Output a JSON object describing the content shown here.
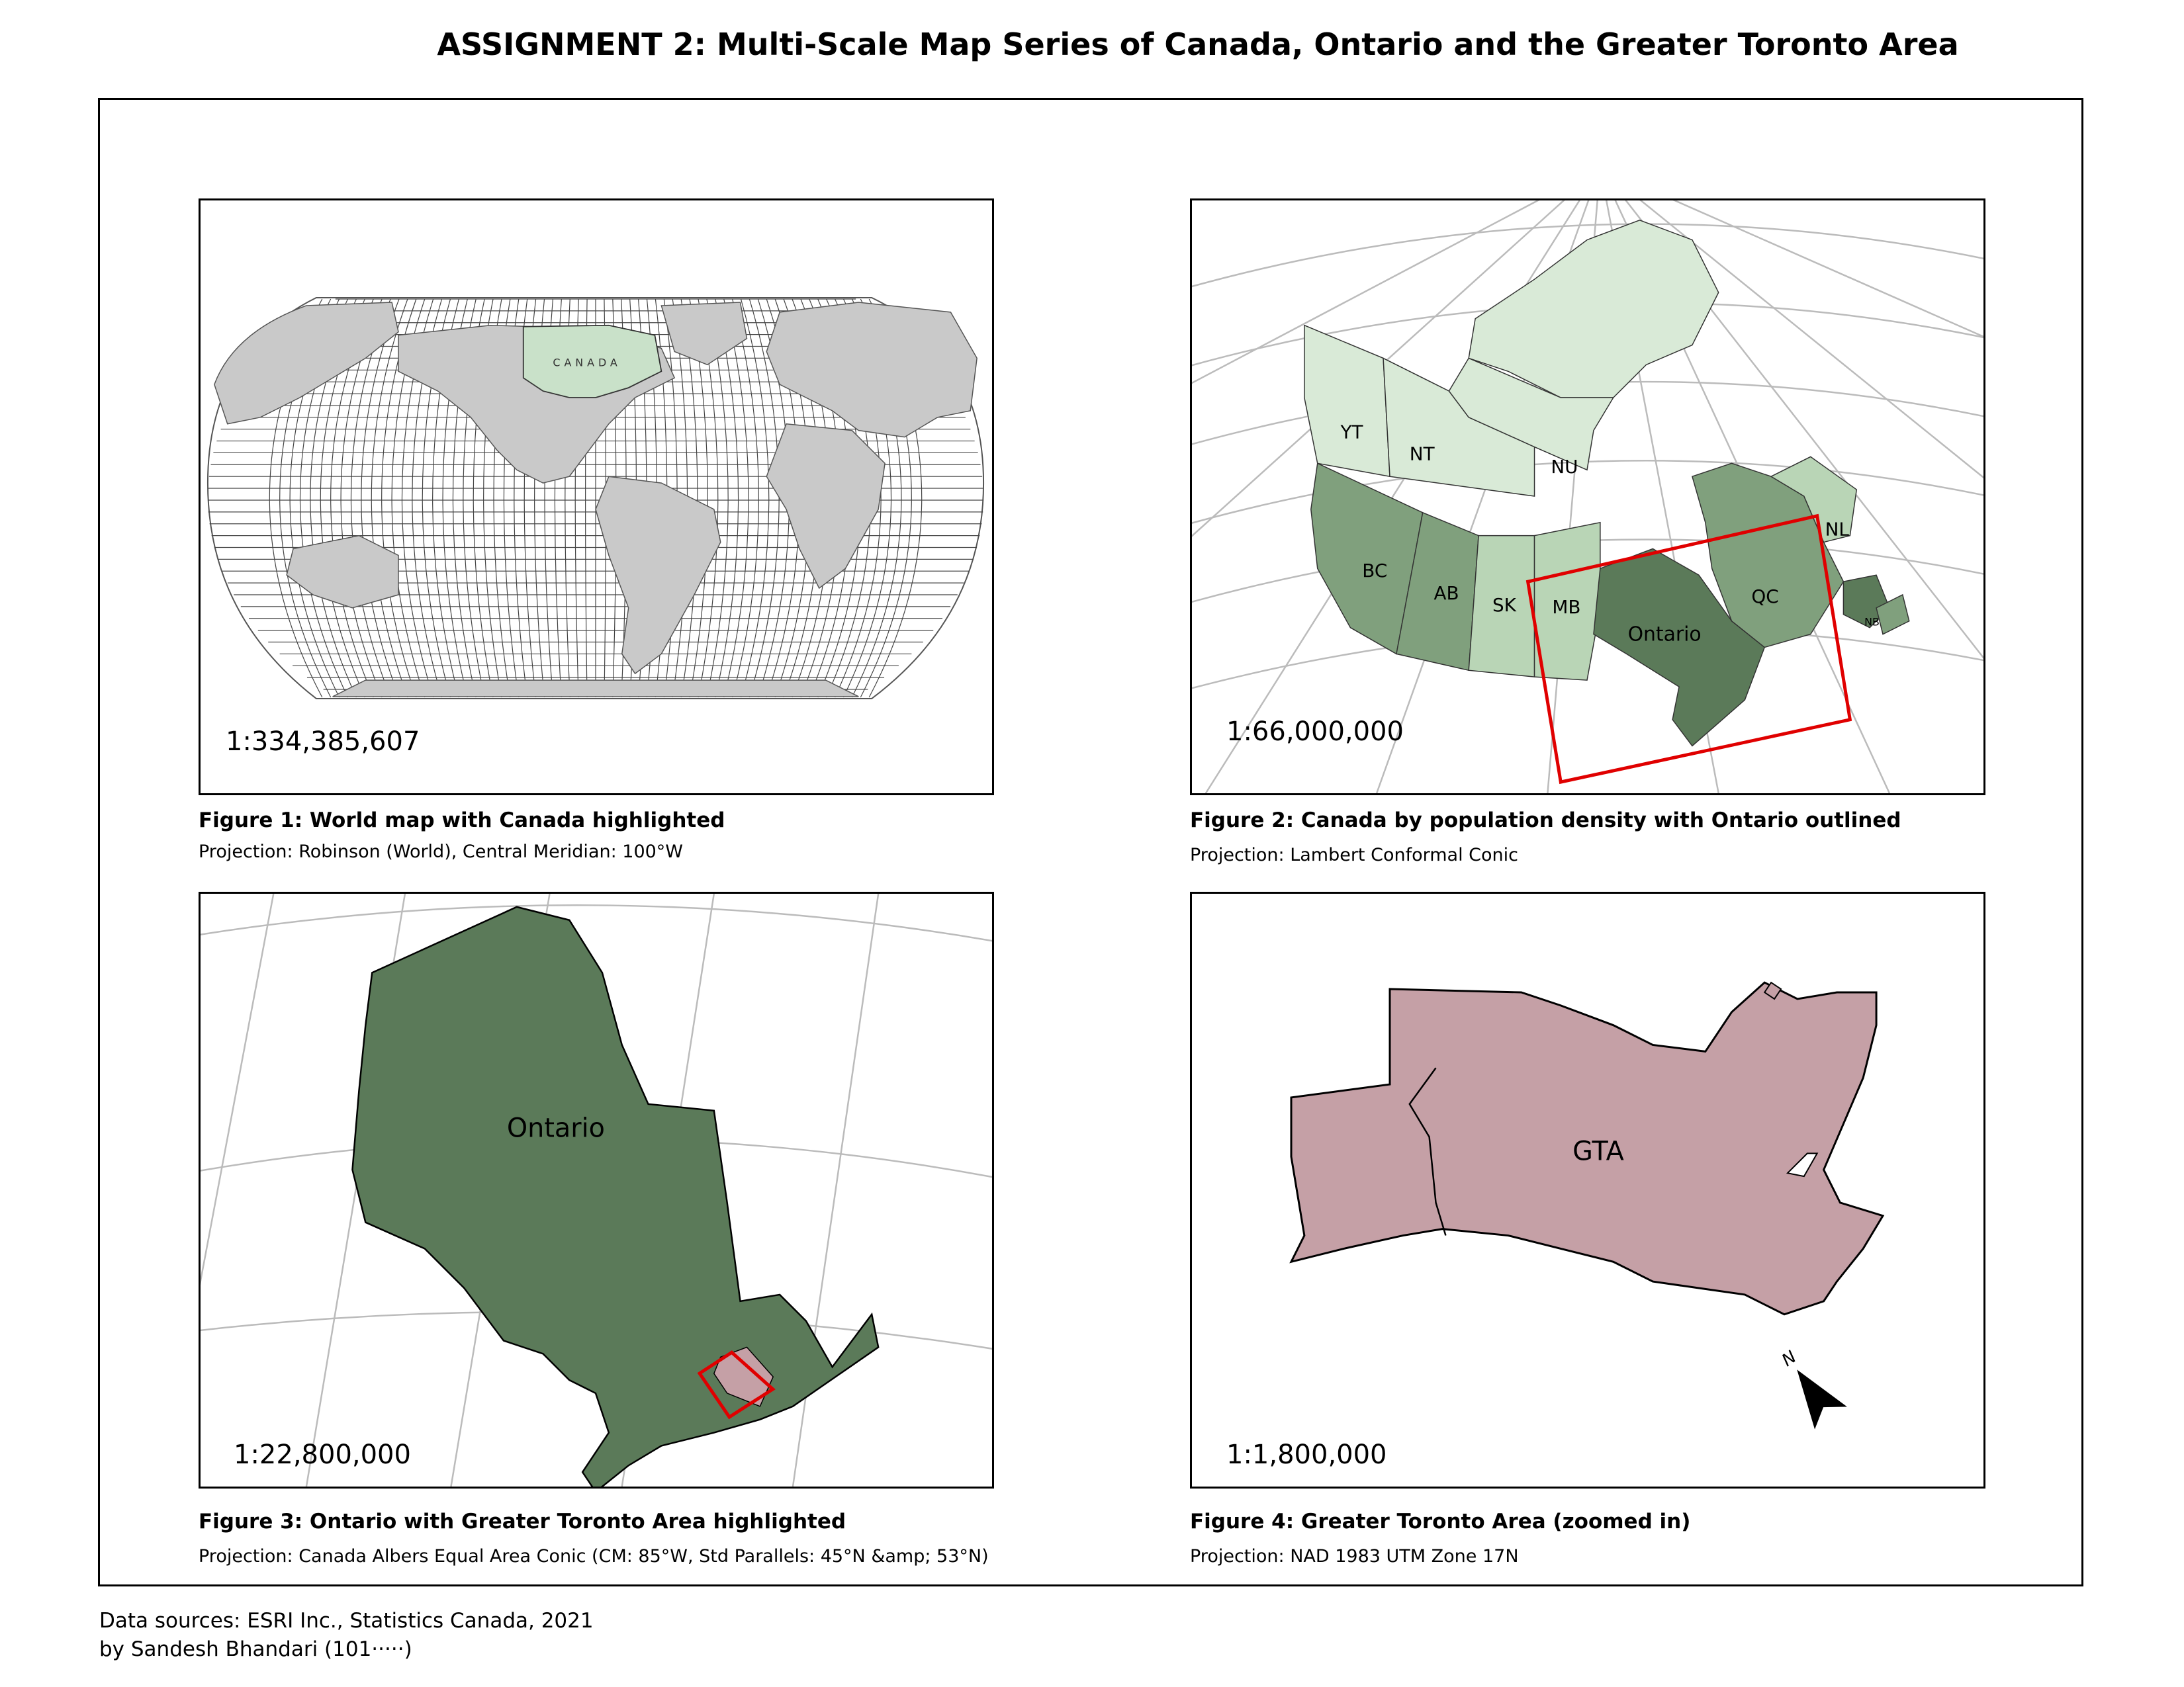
{
  "title": "ASSIGNMENT 2: Multi-Scale Map Series of Canada, Ontario and the Greater Toronto Area",
  "fig1": {
    "scale": "1:334,385,607",
    "caption": "Figure 1: World map with Canada highlighted",
    "projection": "Projection: Robinson (World), Central Meridian: 100°W",
    "label_canada": "CANADA"
  },
  "fig2": {
    "scale": "1:66,000,000",
    "caption": "Figure 2: Canada by population density with Ontario outlined",
    "projection": "Projection: Lambert Conformal Conic",
    "labels": {
      "yt": "YT",
      "nt": "NT",
      "nu": "NU",
      "bc": "BC",
      "ab": "AB",
      "sk": "SK",
      "mb": "MB",
      "on": "Ontario",
      "qc": "QC",
      "nl": "NL",
      "nb": "NB"
    }
  },
  "fig3": {
    "scale": "1:22,800,000",
    "caption": "Figure 3: Ontario with Greater Toronto Area highlighted",
    "projection": "Projection: Canada Albers Equal Area Conic (CM: 85°W, Std Parallels: 45°N &amp; 53°N)",
    "label_ontario": "Ontario"
  },
  "fig4": {
    "scale": "1:1,800,000",
    "caption": "Figure 4: Greater Toronto Area (zoomed in)",
    "projection": "Projection: NAD 1983 UTM Zone 17N",
    "label_gta": "GTA",
    "north": "N"
  },
  "footer": {
    "line1": "Data sources: ESRI Inc., Statistics Canada, 2021",
    "line2": "by Sandesh Bhandari (101·····)"
  },
  "colors": {
    "land_grey": "#c9c9c9",
    "canada_light": "#c9e1c9",
    "density_low": "#d9ead7",
    "density_mid": "#b9d5b6",
    "density_high": "#80a07d",
    "ontario": "#5b7a59",
    "gta": "#c5a0a6",
    "highlight": "#e00000"
  }
}
